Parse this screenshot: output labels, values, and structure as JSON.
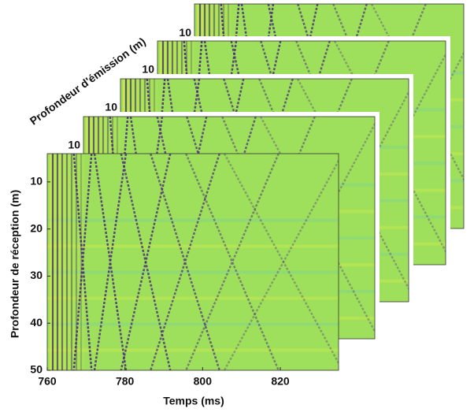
{
  "chart_data": {
    "type": "heatmap-stack",
    "x_label": "Temps (ms)",
    "y_label": "Profondeur de réception (m)",
    "z_label": "Profondeur d'émission (m)",
    "xlim": [
      760,
      835
    ],
    "xticks": [
      760,
      780,
      800,
      820
    ],
    "ylim": [
      4,
      50
    ],
    "yticks": [
      10,
      20,
      30,
      40,
      50
    ]
  }
}
